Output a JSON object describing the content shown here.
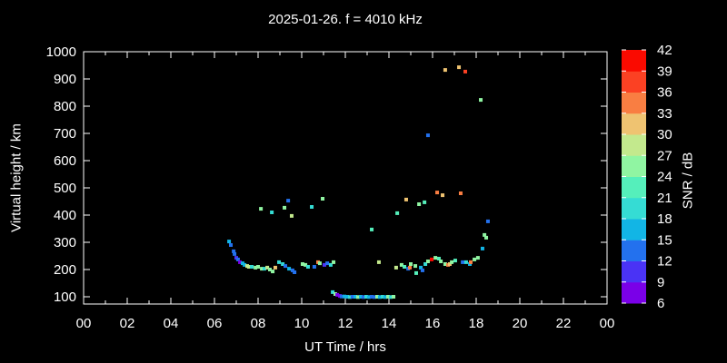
{
  "window": {
    "background": "#000000",
    "foreground": "#ffffff"
  },
  "chart_data": {
    "type": "scatter",
    "title": "2025-01-26. f = 4010 kHz",
    "xlabel": "UT Time / hrs",
    "ylabel": "Virtual height / km",
    "xlim": [
      0,
      24
    ],
    "ylim": [
      73,
      1000
    ],
    "grid": false,
    "x_tick_hours": [
      0,
      2,
      4,
      6,
      8,
      10,
      12,
      14,
      16,
      18,
      20,
      22,
      24
    ],
    "x_tick_labels": [
      "00",
      "02",
      "04",
      "06",
      "08",
      "10",
      "12",
      "14",
      "16",
      "18",
      "20",
      "22",
      "00"
    ],
    "x_minor_tick_hours": [
      1,
      3,
      5,
      7,
      9,
      11,
      13,
      15,
      17,
      19,
      21,
      23
    ],
    "y_ticks": [
      100,
      200,
      300,
      400,
      500,
      600,
      700,
      800,
      900,
      1000
    ],
    "colorbar": {
      "label": "SNR / dB",
      "min": 6,
      "max": 42,
      "step": 3,
      "tick_labels": [
        6,
        9,
        12,
        15,
        18,
        21,
        24,
        27,
        30,
        33,
        36,
        39,
        42
      ],
      "colors_low_to_high": [
        "#7a00e8",
        "#4a33f5",
        "#2371ee",
        "#12b5e5",
        "#35dcd4",
        "#55efbb",
        "#90f5a2",
        "#c3e98d",
        "#efc371",
        "#f97e42",
        "#fb4123",
        "#fa0a00"
      ]
    },
    "points_format": [
      "ut_hour",
      "virtual_height_km",
      "snr_db"
    ],
    "points": [
      [
        6.67,
        303,
        17
      ],
      [
        6.75,
        290,
        14
      ],
      [
        6.88,
        267,
        13
      ],
      [
        6.92,
        257,
        13
      ],
      [
        7.0,
        243,
        10
      ],
      [
        7.08,
        237,
        13
      ],
      [
        7.17,
        227,
        8
      ],
      [
        7.29,
        223,
        17
      ],
      [
        7.38,
        217,
        17
      ],
      [
        7.5,
        213,
        29
      ],
      [
        7.58,
        210,
        28
      ],
      [
        7.71,
        210,
        18
      ],
      [
        7.88,
        207,
        24
      ],
      [
        8.0,
        210,
        25
      ],
      [
        8.17,
        203,
        24
      ],
      [
        8.29,
        203,
        18
      ],
      [
        8.42,
        207,
        29
      ],
      [
        8.54,
        200,
        24
      ],
      [
        8.67,
        193,
        24
      ],
      [
        8.79,
        207,
        31
      ],
      [
        8.13,
        423,
        24
      ],
      [
        8.63,
        410,
        18
      ],
      [
        9.21,
        427,
        24
      ],
      [
        9.38,
        453,
        13
      ],
      [
        9.54,
        397,
        28
      ],
      [
        10.46,
        430,
        18
      ],
      [
        10.96,
        460,
        24
      ],
      [
        8.96,
        227,
        18
      ],
      [
        9.13,
        220,
        18
      ],
      [
        9.25,
        213,
        13
      ],
      [
        9.42,
        203,
        16
      ],
      [
        9.58,
        197,
        13
      ],
      [
        9.67,
        190,
        13
      ],
      [
        10.04,
        220,
        24
      ],
      [
        10.17,
        217,
        24
      ],
      [
        10.29,
        210,
        18
      ],
      [
        10.58,
        210,
        13
      ],
      [
        10.75,
        227,
        33
      ],
      [
        10.83,
        223,
        24
      ],
      [
        11.04,
        217,
        10
      ],
      [
        11.17,
        223,
        13
      ],
      [
        11.33,
        217,
        20
      ],
      [
        11.46,
        227,
        24
      ],
      [
        11.42,
        117,
        20
      ],
      [
        11.54,
        110,
        24
      ],
      [
        11.63,
        107,
        8
      ],
      [
        11.75,
        103,
        8
      ],
      [
        11.83,
        101,
        13
      ],
      [
        11.96,
        101,
        17
      ],
      [
        12.08,
        100,
        17
      ],
      [
        12.21,
        99,
        20
      ],
      [
        12.33,
        100,
        13
      ],
      [
        12.46,
        100,
        17
      ],
      [
        12.58,
        99,
        24
      ],
      [
        12.71,
        100,
        17
      ],
      [
        12.83,
        99,
        13
      ],
      [
        12.96,
        100,
        20
      ],
      [
        13.08,
        99,
        17
      ],
      [
        13.21,
        100,
        13
      ],
      [
        13.33,
        99,
        13
      ],
      [
        13.46,
        100,
        24
      ],
      [
        13.58,
        99,
        17
      ],
      [
        13.71,
        100,
        20
      ],
      [
        13.83,
        99,
        17
      ],
      [
        13.96,
        100,
        24
      ],
      [
        14.08,
        99,
        20
      ],
      [
        14.21,
        100,
        24
      ],
      [
        13.21,
        347,
        21
      ],
      [
        13.54,
        227,
        27
      ],
      [
        14.33,
        207,
        28
      ],
      [
        14.58,
        217,
        24
      ],
      [
        14.71,
        210,
        21
      ],
      [
        14.88,
        203,
        13
      ],
      [
        14.96,
        207,
        34
      ],
      [
        15.0,
        220,
        24
      ],
      [
        15.21,
        213,
        25
      ],
      [
        15.25,
        187,
        21
      ],
      [
        15.46,
        207,
        17
      ],
      [
        15.54,
        197,
        13
      ],
      [
        15.67,
        220,
        18
      ],
      [
        15.79,
        230,
        24
      ],
      [
        15.96,
        237,
        41
      ],
      [
        16.13,
        243,
        24
      ],
      [
        16.29,
        240,
        21
      ],
      [
        16.38,
        230,
        24
      ],
      [
        16.58,
        220,
        24
      ],
      [
        16.71,
        217,
        34
      ],
      [
        16.79,
        220,
        31
      ],
      [
        16.88,
        227,
        24
      ],
      [
        17.04,
        233,
        21
      ],
      [
        17.38,
        227,
        13
      ],
      [
        17.54,
        227,
        20
      ],
      [
        17.71,
        220,
        17
      ],
      [
        17.75,
        227,
        33
      ],
      [
        17.92,
        237,
        24
      ],
      [
        18.08,
        243,
        25
      ],
      [
        14.38,
        407,
        21
      ],
      [
        14.79,
        457,
        31
      ],
      [
        15.38,
        440,
        26
      ],
      [
        15.63,
        447,
        22
      ],
      [
        15.79,
        693,
        13
      ],
      [
        16.21,
        483,
        34
      ],
      [
        16.46,
        473,
        32
      ],
      [
        17.29,
        480,
        34
      ],
      [
        16.58,
        933,
        31
      ],
      [
        17.21,
        943,
        31
      ],
      [
        17.5,
        927,
        37
      ],
      [
        18.21,
        823,
        25
      ],
      [
        18.29,
        277,
        17
      ],
      [
        18.38,
        327,
        24
      ],
      [
        18.46,
        317,
        24
      ],
      [
        18.54,
        377,
        13
      ]
    ]
  }
}
